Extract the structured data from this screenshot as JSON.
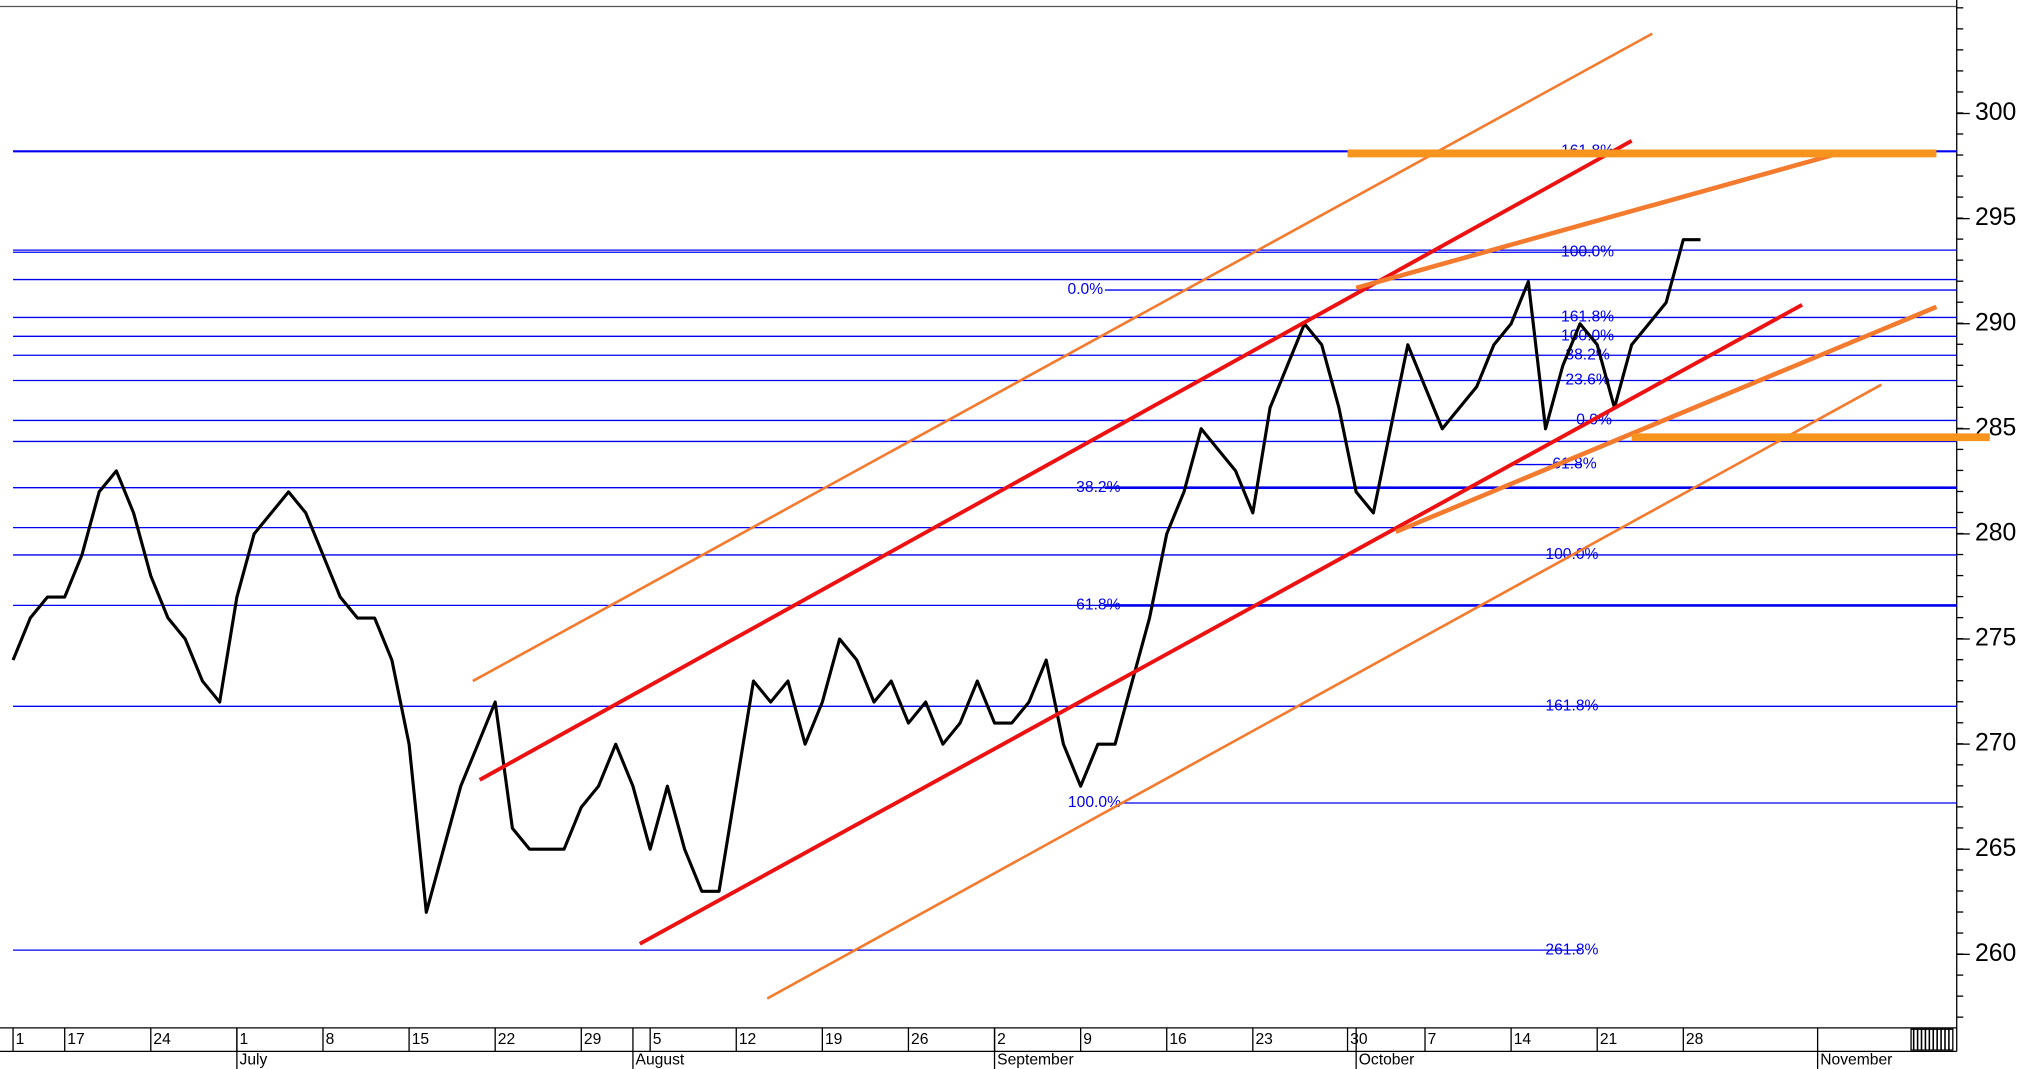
{
  "chart_data": {
    "type": "line",
    "x": [
      0,
      1,
      2,
      3,
      4,
      5,
      6,
      7,
      8,
      9,
      10,
      11,
      12,
      13,
      14,
      15,
      16,
      17,
      18,
      19,
      20,
      21,
      22,
      23,
      24,
      25,
      26,
      27,
      28,
      29,
      30,
      31,
      32,
      33,
      34,
      35,
      36,
      37,
      38,
      39,
      40,
      41,
      42,
      43,
      44,
      45,
      46,
      47,
      48,
      49,
      50,
      51,
      52,
      53,
      54,
      55,
      56,
      57,
      58,
      59,
      60,
      61,
      62,
      63,
      64,
      65,
      66,
      67,
      68,
      69,
      70,
      71,
      72,
      73,
      74,
      75,
      76,
      77,
      78,
      79,
      80,
      81,
      82,
      83,
      84,
      85,
      86,
      87,
      88,
      89,
      90,
      91,
      92,
      93,
      94,
      95,
      96,
      97,
      98
    ],
    "series": [
      {
        "color": "#000000",
        "values": [
          274,
          276,
          277,
          277,
          279,
          282,
          283,
          281,
          278,
          276,
          275,
          273,
          272,
          277,
          280,
          281,
          282,
          281,
          279,
          277,
          276,
          276,
          274,
          270,
          262,
          265,
          268,
          270,
          272,
          266,
          265,
          265,
          265,
          267,
          268,
          270,
          268,
          265,
          268,
          265,
          263,
          263,
          268,
          273,
          272,
          273,
          270,
          272,
          275,
          274,
          272,
          273,
          271,
          272,
          270,
          271,
          273,
          271,
          271,
          272,
          274,
          270,
          268,
          270,
          270,
          273,
          276,
          280,
          282,
          285,
          284,
          283,
          281,
          286,
          288,
          290,
          289,
          286,
          282,
          281,
          285,
          289,
          287,
          285,
          286,
          287,
          289,
          290,
          292,
          285,
          288,
          290,
          289,
          286,
          289,
          290,
          291,
          294,
          294
        ]
      }
    ],
    "xlim": [
      0,
      113
    ],
    "xticks": [
      {
        "value": 0,
        "label": "1"
      },
      {
        "value": 3,
        "label": "17"
      },
      {
        "value": 8,
        "label": "24"
      },
      {
        "value": 13,
        "label": "1"
      },
      {
        "value": 18,
        "label": "8"
      },
      {
        "value": 23,
        "label": "15"
      },
      {
        "value": 28,
        "label": "22"
      },
      {
        "value": 33,
        "label": "29"
      },
      {
        "value": 37,
        "label": "5"
      },
      {
        "value": 42,
        "label": "12"
      },
      {
        "value": 47,
        "label": "19"
      },
      {
        "value": 52,
        "label": "26"
      },
      {
        "value": 57,
        "label": "2"
      },
      {
        "value": 62,
        "label": "9"
      },
      {
        "value": 67,
        "label": "16"
      },
      {
        "value": 72,
        "label": "23"
      },
      {
        "value": 77.5,
        "label": "30"
      },
      {
        "value": 82,
        "label": "7"
      },
      {
        "value": 87,
        "label": "14"
      },
      {
        "value": 92,
        "label": "21"
      },
      {
        "value": 97,
        "label": "28"
      }
    ],
    "months": [
      {
        "value": 13,
        "label": "July"
      },
      {
        "value": 36,
        "label": "August"
      },
      {
        "value": 57,
        "label": "September"
      },
      {
        "value": 78,
        "label": "October"
      },
      {
        "value": 104.8,
        "label": "November"
      }
    ],
    "ylim": [
      256.5,
      305.4
    ],
    "yticks": [
      260,
      265,
      270,
      275,
      280,
      285,
      290,
      295,
      300
    ],
    "levels": [
      {
        "value": 298.2,
        "label": "161.8%"
      },
      {
        "value": 293.5
      },
      {
        "value": 293.4,
        "label": "100.0%"
      },
      {
        "value": 292.1
      },
      {
        "value": 291.6,
        "label": "0.0%"
      },
      {
        "value": 290.3,
        "label": "161.8%"
      },
      {
        "value": 289.4,
        "label": "100.0%"
      },
      {
        "value": 288.5,
        "label": "38.2%"
      },
      {
        "value": 287.3,
        "label": "23.6%"
      },
      {
        "value": 285.4,
        "label": "0.0%"
      },
      {
        "value": 284.4
      },
      {
        "value": 283.3,
        "label": "61.8%"
      },
      {
        "value": 282.2,
        "label": "38.2%"
      },
      {
        "value": 280.3
      },
      {
        "value": 279,
        "label": "100.0%"
      },
      {
        "value": 276.6,
        "label": "61.8%"
      },
      {
        "value": 271.8,
        "label": "161.8%"
      },
      {
        "value": 267.2,
        "label": "100.0%"
      },
      {
        "value": 260.2,
        "label": "261.8%"
      }
    ],
    "level_color": "#0000ee",
    "trendlines": [
      {
        "color": "#ee1111",
        "points": [
          [
            27.1,
            268.3
          ],
          [
            94,
            298.7
          ]
        ]
      },
      {
        "color": "#ee1111",
        "points": [
          [
            36.4,
            260.5
          ],
          [
            103.9,
            290.9
          ]
        ]
      },
      {
        "color": "#f47a2e",
        "points": [
          [
            26.7,
            273.0
          ],
          [
            95.2,
            303.8
          ]
        ]
      },
      {
        "color": "#f47a2e",
        "points": [
          [
            43.8,
            257.9
          ],
          [
            108.5,
            287.1
          ]
        ]
      },
      {
        "color": "#f47a2e",
        "points": [
          [
            80.3,
            280.1
          ],
          [
            111.7,
            290.8
          ]
        ]
      },
      {
        "color": "#f47a2e",
        "points": [
          [
            78,
            291.7
          ],
          [
            106,
            298.1
          ]
        ]
      },
      {
        "color": "#f7941d",
        "points": [
          [
            77.5,
            298.1
          ],
          [
            111.7,
            298.1
          ]
        ]
      },
      {
        "color": "#f7941d",
        "points": [
          [
            94,
            284.6
          ],
          [
            114.8,
            284.6
          ]
        ]
      }
    ]
  }
}
